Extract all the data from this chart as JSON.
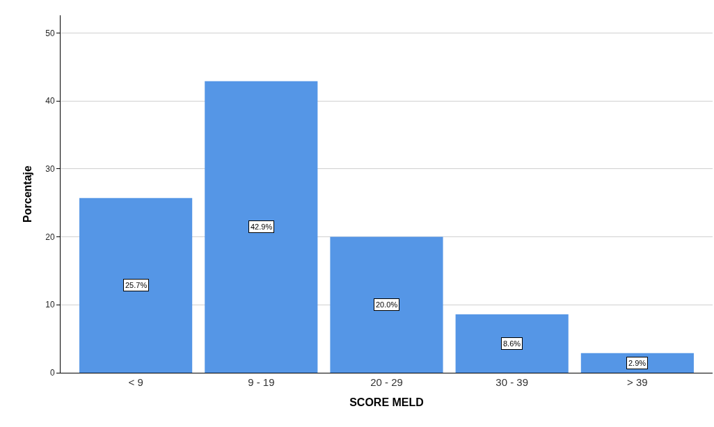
{
  "chart_data": {
    "type": "bar",
    "xlabel": "SCORE MELD",
    "ylabel": "Porcentaje",
    "categories": [
      "< 9",
      "9 - 19",
      "20 - 29",
      "30 - 39",
      "> 39"
    ],
    "values": [
      25.7,
      42.9,
      20.0,
      8.6,
      2.9
    ],
    "value_labels": [
      "25.7%",
      "42.9%",
      "20.0%",
      "8.6%",
      "2.9%"
    ],
    "color": "#5596e6",
    "ylim": [
      0,
      52.6
    ],
    "yticks": [
      0,
      10,
      20,
      30,
      40,
      50
    ],
    "grid": "y"
  }
}
